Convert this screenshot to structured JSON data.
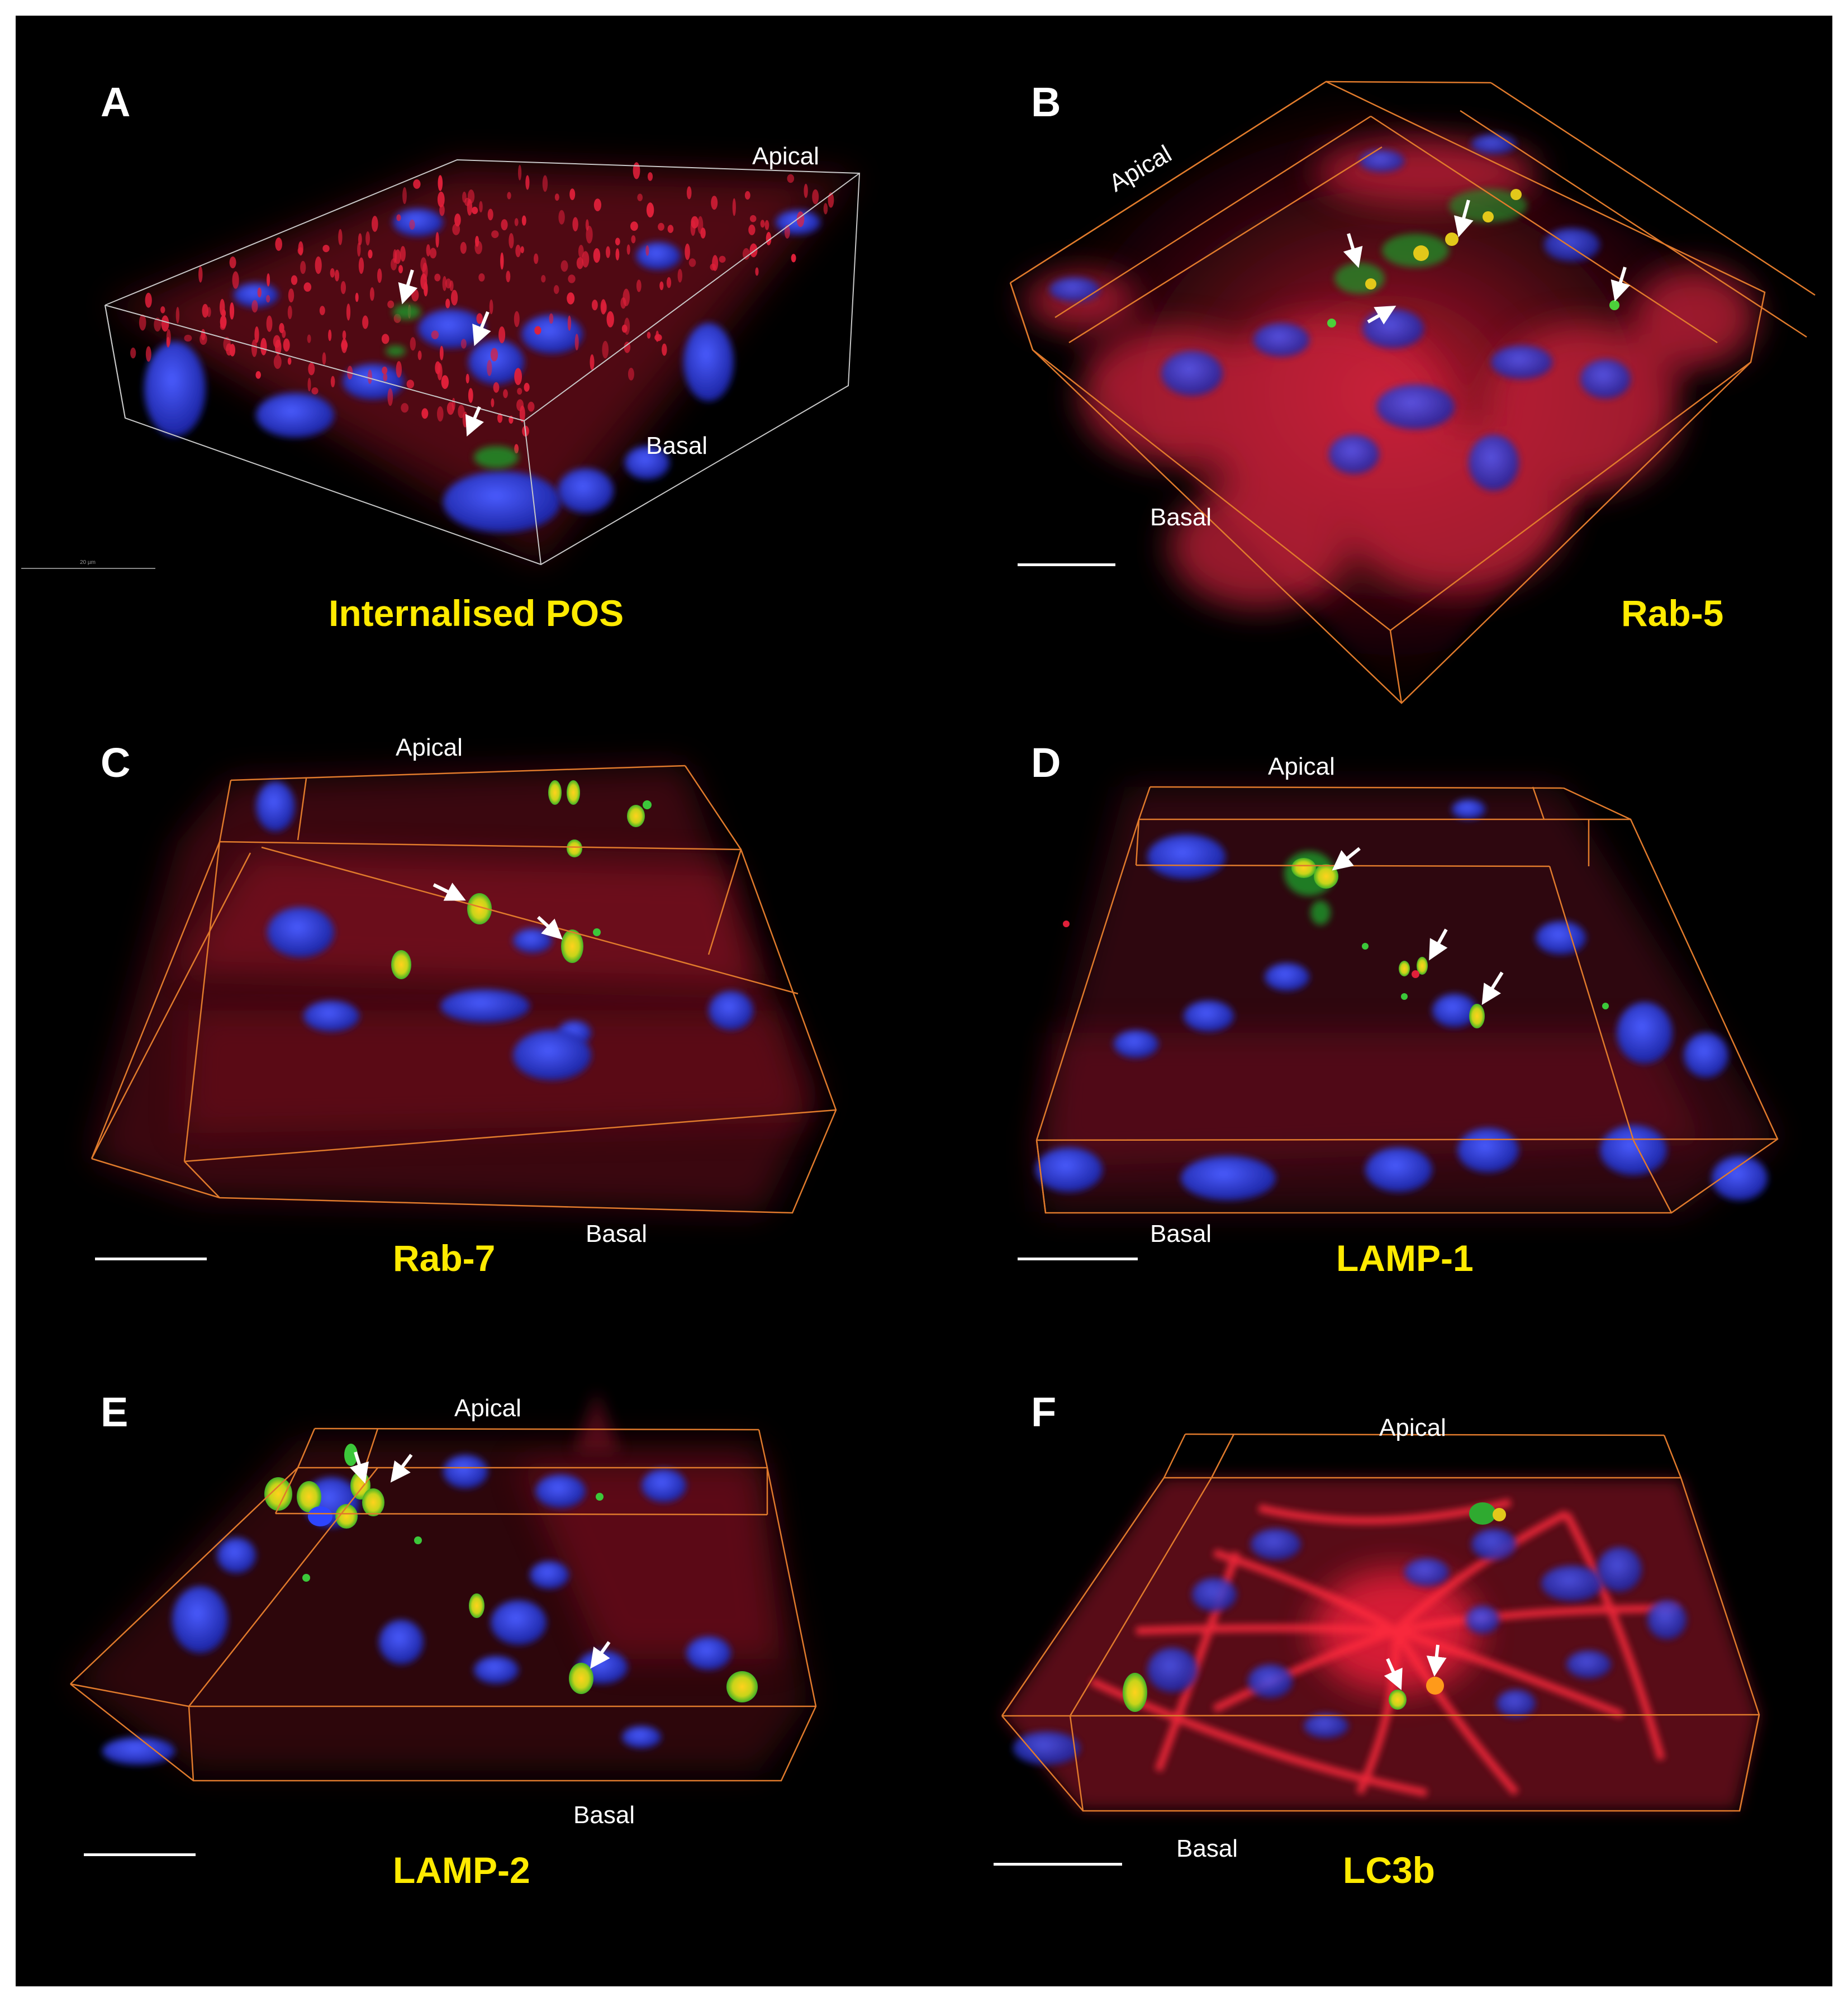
{
  "panels": {
    "A": {
      "letter": "A",
      "caption": "Internalised POS",
      "top_label": "Apical",
      "bottom_label": "Basal",
      "scale_text": "20 µm"
    },
    "B": {
      "letter": "B",
      "caption": "Rab-5",
      "top_label": "Apical",
      "bottom_label": "Basal"
    },
    "C": {
      "letter": "C",
      "caption": "Rab-7",
      "top_label": "Apical",
      "bottom_label": "Basal"
    },
    "D": {
      "letter": "D",
      "caption": "LAMP-1",
      "top_label": "Apical",
      "bottom_label": "Basal"
    },
    "E": {
      "letter": "E",
      "caption": "LAMP-2",
      "top_label": "Apical",
      "bottom_label": "Basal"
    },
    "F": {
      "letter": "F",
      "caption": "LC3b",
      "top_label": "Apical",
      "bottom_label": "Basal"
    }
  },
  "colors": {
    "background": "#000000",
    "caption": "#ffea00",
    "label": "#ffffff",
    "box_outline": "#e07a2c",
    "box_outline_panel_a": "#c8c8c8",
    "nuclei": "#2233dd",
    "membrane": "#d0203a",
    "marker": "#22c02a",
    "colocalization": "#f2d60a",
    "arrow": "#ffffff"
  }
}
